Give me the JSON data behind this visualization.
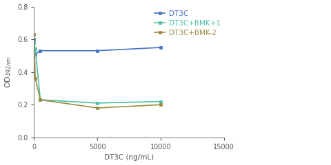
{
  "series": [
    {
      "label": "DT3C",
      "color": "#4472C4",
      "x": [
        0,
        100,
        500,
        5000,
        10000
      ],
      "y": [
        0.6,
        0.51,
        0.53,
        0.53,
        0.55
      ],
      "marker": "s",
      "markersize": 3
    },
    {
      "label": "DT3C+BMK+1",
      "color": "#4DBFA8",
      "x": [
        0,
        100,
        500,
        5000,
        10000
      ],
      "y": [
        0.58,
        0.54,
        0.23,
        0.21,
        0.22
      ],
      "marker": "s",
      "markersize": 3
    },
    {
      "label": "DT3C+BMK-2",
      "color": "#9B8C40",
      "x": [
        0,
        100,
        500,
        5000,
        10000
      ],
      "y": [
        0.63,
        0.36,
        0.23,
        0.18,
        0.2
      ],
      "marker": "s",
      "markersize": 3
    }
  ],
  "xlabel": "DT3C (ng/mL)",
  "ylabel_main": "OD",
  "ylabel_sub": "492nm",
  "xlim": [
    0,
    15000
  ],
  "ylim": [
    0.0,
    0.8
  ],
  "yticks": [
    0.0,
    0.2,
    0.4,
    0.6,
    0.8
  ],
  "xticks": [
    0,
    5000,
    10000,
    15000
  ],
  "xtick_labels": [
    "0",
    "5000",
    "10000",
    "15000"
  ],
  "background_color": "#ffffff",
  "linewidth": 1.2,
  "spine_color": "#888888",
  "tick_color": "#555555",
  "xlabel_fontsize": 7.5,
  "ylabel_fontsize": 8,
  "tick_fontsize": 7,
  "legend_fontsize": 7.5
}
